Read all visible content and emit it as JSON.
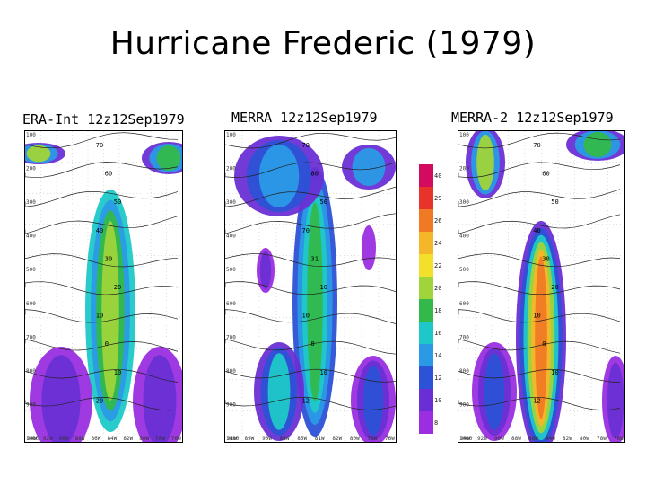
{
  "slide": {
    "title": "Hurricane Frederic (1979)"
  },
  "panels": [
    {
      "title": "ERA-Int 12z12Sep1979",
      "y_ticks": [
        "100",
        "200",
        "300",
        "400",
        "500",
        "600",
        "700",
        "800",
        "900",
        "1000"
      ],
      "x_ticks": [
        "94W",
        "92W",
        "90W",
        "88W",
        "86W",
        "84W",
        "82W",
        "80W",
        "78W",
        "76W"
      ],
      "contours": [
        "70",
        "60",
        "50",
        "40",
        "30",
        "20",
        "10",
        "0",
        "10",
        "20"
      ]
    },
    {
      "title": "MERRA 12z12Sep1979",
      "y_ticks": [
        "100",
        "200",
        "300",
        "400",
        "500",
        "600",
        "700",
        "800",
        "900",
        "1000"
      ],
      "x_ticks": [
        "91W",
        "89W",
        "90W",
        "88W",
        "85W",
        "81W",
        "82W",
        "80W",
        "78W",
        "76W"
      ],
      "contours": [
        "70",
        "80",
        "50",
        "70",
        "31",
        "10",
        "10",
        "0",
        "10",
        "12"
      ]
    },
    {
      "title": "MERRA-2 12z12Sep1979",
      "y_ticks": [
        "100",
        "200",
        "300",
        "400",
        "500",
        "600",
        "700",
        "800",
        "900",
        "1000"
      ],
      "x_ticks": [
        "94W",
        "92W",
        "90W",
        "88W",
        "86W",
        "84W",
        "82W",
        "80W",
        "78W",
        "76W"
      ],
      "contours": [
        "70",
        "60",
        "50",
        "40",
        "30",
        "20",
        "10",
        "0",
        "10",
        "12"
      ]
    }
  ],
  "colorbar": {
    "labels": [
      "40",
      "29",
      "26",
      "24",
      "22",
      "20",
      "18",
      "16",
      "14",
      "12",
      "10",
      "8"
    ],
    "colors": [
      "#d40a5e",
      "#e8332a",
      "#f07a24",
      "#f5b629",
      "#f2e02b",
      "#9fd43a",
      "#33b94a",
      "#1fc8c8",
      "#2a9ae6",
      "#2c52d6",
      "#6a2fd4",
      "#9a2ee0"
    ]
  }
}
